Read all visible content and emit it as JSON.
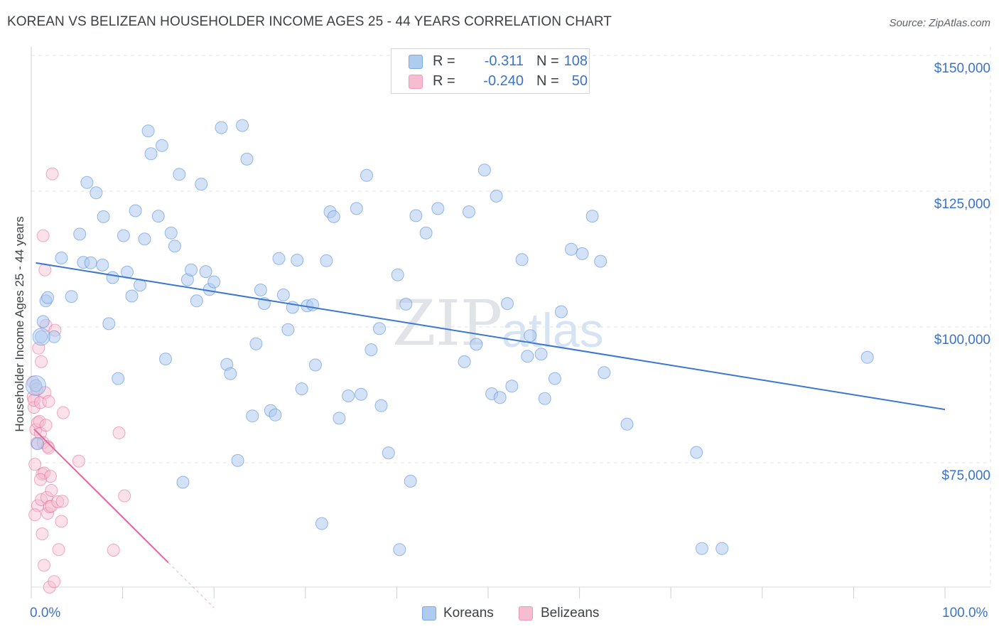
{
  "title": "KOREAN VS BELIZEAN HOUSEHOLDER INCOME AGES 25 - 44 YEARS CORRELATION CHART",
  "source": "Source: ZipAtlas.com",
  "watermark": {
    "zip": "ZIP",
    "atlas": "atlas"
  },
  "legend_top": [
    {
      "r_label": "R =",
      "r_value": "-0.311",
      "n_label": "N =",
      "n_value": "108"
    },
    {
      "r_label": "R =",
      "r_value": "-0.240",
      "n_label": "N =",
      "n_value": "50"
    }
  ],
  "chart_data": {
    "type": "scatter",
    "title": "KOREAN VS BELIZEAN HOUSEHOLDER INCOME AGES 25 - 44 YEARS CORRELATION CHART",
    "xlabel": "",
    "ylabel": "Householder Income Ages 25 - 44 years",
    "xlim": [
      0,
      100
    ],
    "ylim": [
      48000,
      154000
    ],
    "x_tick_labels": [
      "0.0%",
      "100.0%"
    ],
    "y_ticks": [
      75000,
      100000,
      125000,
      150000
    ],
    "y_tick_labels": [
      "$75,000",
      "$100,000",
      "$125,000",
      "$150,000"
    ],
    "grid": true,
    "legend_position": "bottom-center",
    "series": [
      {
        "name": "Koreans",
        "color": "#4a86d8",
        "fill": "#aecbf0",
        "r": -0.311,
        "n": 108,
        "trend": {
          "x": [
            0.5,
            100
          ],
          "y": [
            111800,
            84800
          ]
        },
        "points": [
          [
            0.5,
            89200
          ],
          [
            0.7,
            78500
          ],
          [
            1.1,
            98200
          ],
          [
            1.3,
            101000
          ],
          [
            1.6,
            104800
          ],
          [
            1.8,
            105400
          ],
          [
            2.5,
            98200
          ],
          [
            3.3,
            112700
          ],
          [
            4.4,
            105600
          ],
          [
            5.3,
            117100
          ],
          [
            5.7,
            111900
          ],
          [
            6.1,
            126600
          ],
          [
            6.5,
            111800
          ],
          [
            7.1,
            124700
          ],
          [
            7.8,
            111400
          ],
          [
            7.9,
            120300
          ],
          [
            8.5,
            100600
          ],
          [
            8.9,
            109100
          ],
          [
            9.5,
            90500
          ],
          [
            10.1,
            116800
          ],
          [
            10.5,
            110100
          ],
          [
            11.0,
            105700
          ],
          [
            11.4,
            121400
          ],
          [
            11.9,
            107700
          ],
          [
            12.4,
            116200
          ],
          [
            12.8,
            136100
          ],
          [
            13.1,
            131900
          ],
          [
            13.9,
            120400
          ],
          [
            14.3,
            133400
          ],
          [
            14.7,
            94100
          ],
          [
            15.3,
            117300
          ],
          [
            15.7,
            114900
          ],
          [
            16.2,
            128100
          ],
          [
            16.6,
            71400
          ],
          [
            17.1,
            108700
          ],
          [
            17.5,
            110500
          ],
          [
            18.1,
            104800
          ],
          [
            18.6,
            126300
          ],
          [
            19.1,
            110200
          ],
          [
            19.5,
            106900
          ],
          [
            20.0,
            108300
          ],
          [
            20.8,
            136700
          ],
          [
            21.4,
            93100
          ],
          [
            21.8,
            91400
          ],
          [
            22.6,
            75400
          ],
          [
            23.1,
            137100
          ],
          [
            23.6,
            130900
          ],
          [
            24.2,
            83600
          ],
          [
            24.6,
            96900
          ],
          [
            25.1,
            106800
          ],
          [
            25.5,
            104300
          ],
          [
            26.2,
            84600
          ],
          [
            26.7,
            83800
          ],
          [
            27.1,
            112600
          ],
          [
            27.6,
            105900
          ],
          [
            28.1,
            99500
          ],
          [
            28.6,
            103600
          ],
          [
            29.1,
            112300
          ],
          [
            29.6,
            88600
          ],
          [
            30.2,
            103900
          ],
          [
            30.8,
            104100
          ],
          [
            31.1,
            93000
          ],
          [
            31.8,
            63800
          ],
          [
            32.3,
            112200
          ],
          [
            32.7,
            121200
          ],
          [
            33.1,
            120300
          ],
          [
            33.7,
            83200
          ],
          [
            34.7,
            87300
          ],
          [
            35.6,
            121800
          ],
          [
            36.1,
            87600
          ],
          [
            36.7,
            127900
          ],
          [
            37.2,
            95800
          ],
          [
            38.1,
            99700
          ],
          [
            38.3,
            85500
          ],
          [
            39.1,
            76800
          ],
          [
            40.1,
            109600
          ],
          [
            40.3,
            59000
          ],
          [
            41.0,
            104200
          ],
          [
            41.5,
            71600
          ],
          [
            42.1,
            120500
          ],
          [
            43.2,
            117300
          ],
          [
            44.5,
            121800
          ],
          [
            47.4,
            93600
          ],
          [
            47.9,
            121200
          ],
          [
            48.7,
            96800
          ],
          [
            49.6,
            128900
          ],
          [
            50.4,
            87700
          ],
          [
            50.9,
            124100
          ],
          [
            51.3,
            87000
          ],
          [
            52.1,
            104300
          ],
          [
            52.6,
            89100
          ],
          [
            53.7,
            112400
          ],
          [
            54.3,
            94600
          ],
          [
            54.6,
            98400
          ],
          [
            55.8,
            95000
          ],
          [
            56.2,
            86800
          ],
          [
            57.3,
            90500
          ],
          [
            58.0,
            102800
          ],
          [
            59.1,
            114300
          ],
          [
            60.3,
            113500
          ],
          [
            61.4,
            120400
          ],
          [
            62.3,
            112100
          ],
          [
            62.7,
            91600
          ],
          [
            65.2,
            82100
          ],
          [
            72.8,
            76900
          ],
          [
            73.4,
            59200
          ],
          [
            75.6,
            59200
          ],
          [
            91.5,
            94400
          ]
        ]
      },
      {
        "name": "Belizeans",
        "color": "#e5699a",
        "fill": "#f6bccf",
        "r": -0.24,
        "n": 50,
        "trend": {
          "x": [
            0.3,
            15.0
          ],
          "y": [
            81200,
            56600
          ]
        },
        "trend_dashed": {
          "x": [
            15.0,
            20.0
          ],
          "y": [
            56600,
            48300
          ]
        },
        "points": [
          [
            0.2,
            89800
          ],
          [
            0.2,
            87100
          ],
          [
            0.3,
            85200
          ],
          [
            0.3,
            86500
          ],
          [
            0.4,
            74700
          ],
          [
            0.5,
            81100
          ],
          [
            0.6,
            78600
          ],
          [
            0.6,
            88600
          ],
          [
            0.7,
            67100
          ],
          [
            0.7,
            82400
          ],
          [
            0.8,
            96100
          ],
          [
            0.9,
            82600
          ],
          [
            1.0,
            80400
          ],
          [
            1.0,
            86100
          ],
          [
            1.1,
            93600
          ],
          [
            1.1,
            68200
          ],
          [
            1.2,
            61900
          ],
          [
            1.2,
            72900
          ],
          [
            1.3,
            78700
          ],
          [
            1.3,
            116800
          ],
          [
            1.4,
            73100
          ],
          [
            1.4,
            56100
          ],
          [
            1.5,
            110500
          ],
          [
            1.5,
            87900
          ],
          [
            1.6,
            100300
          ],
          [
            1.7,
            68600
          ],
          [
            1.8,
            65700
          ],
          [
            1.8,
            78000
          ],
          [
            1.9,
            86300
          ],
          [
            1.9,
            77700
          ],
          [
            2.0,
            66900
          ],
          [
            2.0,
            52100
          ],
          [
            2.1,
            72500
          ],
          [
            2.2,
            67000
          ],
          [
            2.2,
            69900
          ],
          [
            2.3,
            128200
          ],
          [
            2.5,
            53100
          ],
          [
            2.6,
            99400
          ],
          [
            2.9,
            67800
          ],
          [
            3.0,
            59000
          ],
          [
            3.3,
            64200
          ],
          [
            3.4,
            67900
          ],
          [
            3.5,
            84200
          ],
          [
            5.2,
            75300
          ],
          [
            9.0,
            58900
          ],
          [
            9.6,
            80500
          ],
          [
            10.2,
            68900
          ],
          [
            0.4,
            65400
          ],
          [
            1.0,
            71900
          ],
          [
            1.6,
            81900
          ]
        ]
      }
    ]
  }
}
